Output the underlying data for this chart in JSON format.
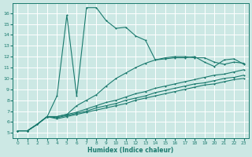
{
  "background_color": "#cce8e4",
  "grid_color": "#ffffff",
  "line_color": "#1a7a6e",
  "xlabel": "Humidex (Indice chaleur)",
  "xlim": [
    -0.5,
    23.5
  ],
  "ylim": [
    4.5,
    16.9
  ],
  "yticks": [
    5,
    6,
    7,
    8,
    9,
    10,
    11,
    12,
    13,
    14,
    15,
    16
  ],
  "xticks": [
    0,
    1,
    2,
    3,
    4,
    5,
    6,
    7,
    8,
    9,
    10,
    11,
    12,
    13,
    14,
    15,
    16,
    17,
    18,
    19,
    20,
    21,
    22,
    23
  ],
  "series1_x": [
    0,
    1,
    2,
    3,
    4,
    5,
    6,
    7,
    8,
    9,
    10,
    11,
    12,
    13,
    14,
    15,
    16,
    17,
    18,
    19,
    20,
    21,
    22,
    23
  ],
  "series1_y": [
    5.2,
    5.2,
    5.8,
    6.5,
    8.4,
    15.8,
    8.4,
    16.5,
    16.5,
    15.3,
    14.6,
    14.7,
    13.9,
    13.5,
    11.7,
    11.8,
    11.9,
    11.9,
    12.0,
    11.5,
    11.1,
    11.7,
    11.8,
    11.3
  ],
  "series2_x": [
    0,
    1,
    2,
    3,
    4,
    5,
    6,
    7,
    8,
    9,
    10,
    11,
    12,
    13,
    14,
    15,
    16,
    17,
    18,
    19,
    20,
    21,
    22,
    23
  ],
  "series2_y": [
    5.2,
    5.2,
    5.8,
    6.5,
    6.5,
    6.7,
    7.5,
    8.0,
    8.5,
    9.3,
    10.0,
    10.5,
    11.0,
    11.4,
    11.7,
    11.9,
    12.0,
    12.0,
    11.9,
    11.9,
    11.5,
    11.3,
    11.5,
    11.4
  ],
  "series3_x": [
    0,
    1,
    2,
    3,
    4,
    5,
    6,
    7,
    8,
    9,
    10,
    11,
    12,
    13,
    14,
    15,
    16,
    17,
    18,
    19,
    20,
    21,
    22,
    23
  ],
  "series3_y": [
    5.2,
    5.2,
    5.8,
    6.5,
    6.5,
    6.7,
    6.9,
    7.2,
    7.5,
    7.8,
    8.0,
    8.3,
    8.6,
    8.8,
    9.1,
    9.3,
    9.5,
    9.7,
    9.9,
    10.1,
    10.3,
    10.4,
    10.6,
    10.8
  ],
  "series4_x": [
    0,
    1,
    2,
    3,
    4,
    5,
    6,
    7,
    8,
    9,
    10,
    11,
    12,
    13,
    14,
    15,
    16,
    17,
    18,
    19,
    20,
    21,
    22,
    23
  ],
  "series4_y": [
    5.2,
    5.2,
    5.8,
    6.5,
    6.4,
    6.6,
    6.8,
    7.0,
    7.3,
    7.5,
    7.7,
    8.0,
    8.2,
    8.4,
    8.7,
    8.9,
    9.1,
    9.3,
    9.5,
    9.6,
    9.8,
    10.0,
    10.1,
    10.3
  ],
  "series5_x": [
    0,
    1,
    2,
    3,
    4,
    5,
    6,
    7,
    8,
    9,
    10,
    11,
    12,
    13,
    14,
    15,
    16,
    17,
    18,
    19,
    20,
    21,
    22,
    23
  ],
  "series5_y": [
    5.2,
    5.2,
    5.8,
    6.5,
    6.3,
    6.5,
    6.7,
    6.9,
    7.1,
    7.3,
    7.5,
    7.7,
    8.0,
    8.2,
    8.4,
    8.6,
    8.8,
    9.0,
    9.2,
    9.4,
    9.5,
    9.7,
    9.9,
    10.0
  ]
}
